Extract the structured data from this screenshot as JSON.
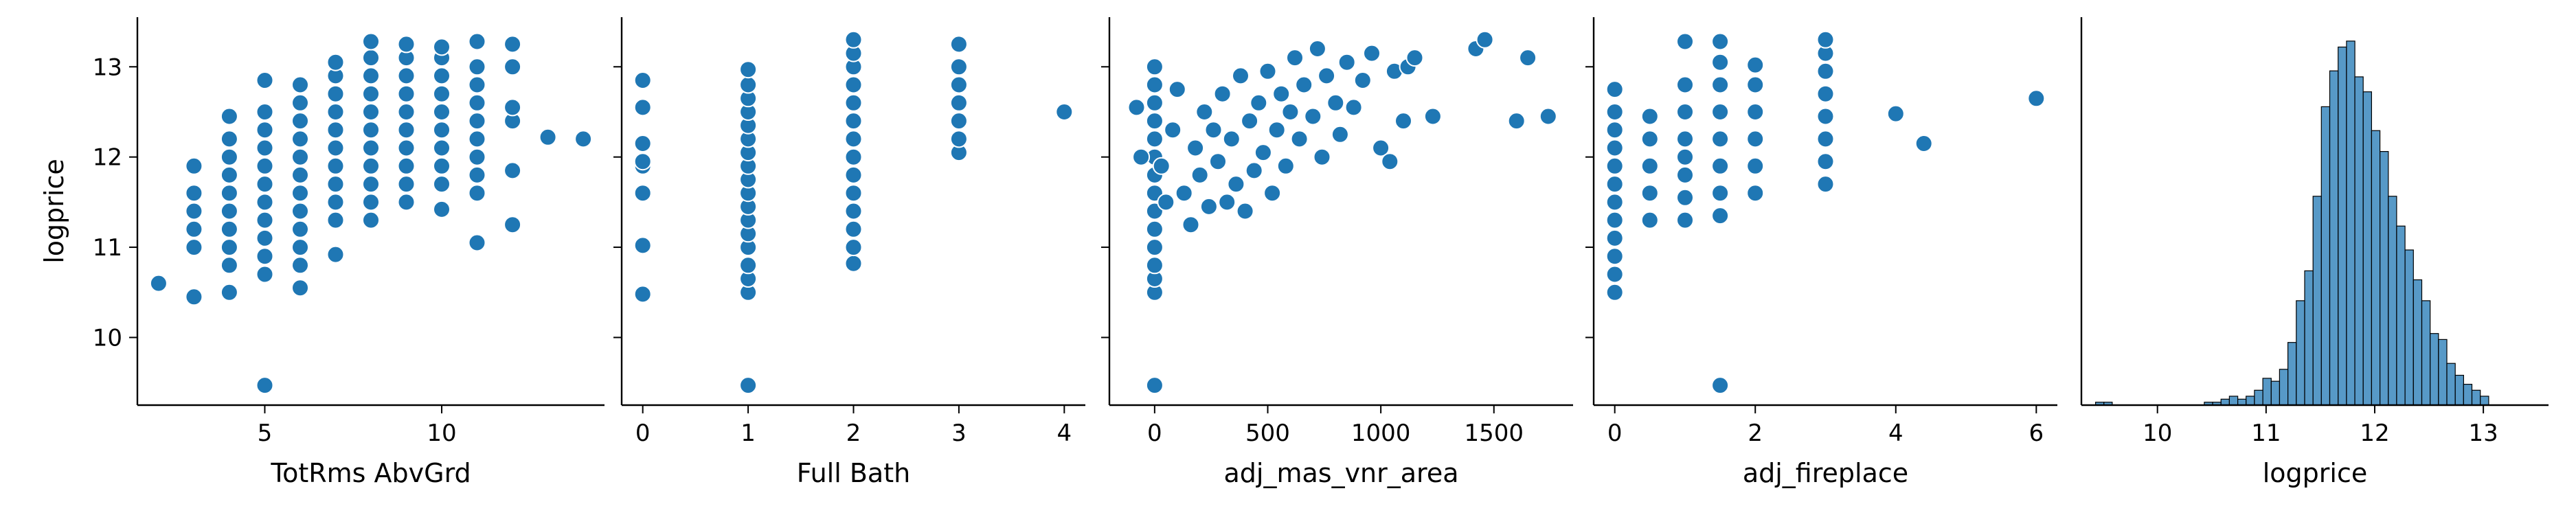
{
  "chart_data": [
    {
      "type": "scatter",
      "xlabel": "TotRms AbvGrd",
      "ylabel": "logprice",
      "xlim": [
        1.4,
        14.6
      ],
      "ylim": [
        9.25,
        13.55
      ],
      "xticks": [
        5,
        10
      ],
      "yticks": [
        10,
        11,
        12,
        13
      ],
      "color": "#1f77b4",
      "points": [
        [
          2,
          10.6
        ],
        [
          3,
          10.45
        ],
        [
          3,
          11.0
        ],
        [
          3,
          11.2
        ],
        [
          3,
          11.4
        ],
        [
          3,
          11.6
        ],
        [
          3,
          11.9
        ],
        [
          4,
          10.5
        ],
        [
          4,
          10.8
        ],
        [
          4,
          11.0
        ],
        [
          4,
          11.2
        ],
        [
          4,
          11.4
        ],
        [
          4,
          11.6
        ],
        [
          4,
          11.8
        ],
        [
          4,
          12.0
        ],
        [
          4,
          12.2
        ],
        [
          4,
          12.45
        ],
        [
          5,
          9.47
        ],
        [
          5,
          10.7
        ],
        [
          5,
          10.9
        ],
        [
          5,
          11.1
        ],
        [
          5,
          11.3
        ],
        [
          5,
          11.5
        ],
        [
          5,
          11.7
        ],
        [
          5,
          11.9
        ],
        [
          5,
          12.1
        ],
        [
          5,
          12.3
        ],
        [
          5,
          12.5
        ],
        [
          5,
          12.85
        ],
        [
          6,
          10.55
        ],
        [
          6,
          10.8
        ],
        [
          6,
          11.0
        ],
        [
          6,
          11.2
        ],
        [
          6,
          11.4
        ],
        [
          6,
          11.6
        ],
        [
          6,
          11.8
        ],
        [
          6,
          12.0
        ],
        [
          6,
          12.2
        ],
        [
          6,
          12.4
        ],
        [
          6,
          12.6
        ],
        [
          6,
          12.8
        ],
        [
          7,
          10.92
        ],
        [
          7,
          11.3
        ],
        [
          7,
          11.5
        ],
        [
          7,
          11.7
        ],
        [
          7,
          11.9
        ],
        [
          7,
          12.1
        ],
        [
          7,
          12.3
        ],
        [
          7,
          12.5
        ],
        [
          7,
          12.7
        ],
        [
          7,
          12.9
        ],
        [
          7,
          13.05
        ],
        [
          8,
          11.3
        ],
        [
          8,
          11.5
        ],
        [
          8,
          11.7
        ],
        [
          8,
          11.9
        ],
        [
          8,
          12.1
        ],
        [
          8,
          12.3
        ],
        [
          8,
          12.5
        ],
        [
          8,
          12.7
        ],
        [
          8,
          12.9
        ],
        [
          8,
          13.1
        ],
        [
          8,
          13.28
        ],
        [
          9,
          11.5
        ],
        [
          9,
          11.7
        ],
        [
          9,
          11.9
        ],
        [
          9,
          12.1
        ],
        [
          9,
          12.3
        ],
        [
          9,
          12.5
        ],
        [
          9,
          12.7
        ],
        [
          9,
          12.9
        ],
        [
          9,
          13.1
        ],
        [
          9,
          13.25
        ],
        [
          10,
          11.42
        ],
        [
          10,
          11.7
        ],
        [
          10,
          11.9
        ],
        [
          10,
          12.1
        ],
        [
          10,
          12.3
        ],
        [
          10,
          12.5
        ],
        [
          10,
          12.7
        ],
        [
          10,
          12.9
        ],
        [
          10,
          13.1
        ],
        [
          10,
          13.22
        ],
        [
          11,
          11.05
        ],
        [
          11,
          11.6
        ],
        [
          11,
          11.8
        ],
        [
          11,
          12.0
        ],
        [
          11,
          12.2
        ],
        [
          11,
          12.4
        ],
        [
          11,
          12.6
        ],
        [
          11,
          12.8
        ],
        [
          11,
          13.0
        ],
        [
          11,
          13.28
        ],
        [
          12,
          11.25
        ],
        [
          12,
          11.85
        ],
        [
          12,
          12.4
        ],
        [
          12,
          12.55
        ],
        [
          12,
          13.0
        ],
        [
          12,
          13.25
        ],
        [
          13,
          12.22
        ],
        [
          14,
          12.2
        ]
      ]
    },
    {
      "type": "scatter",
      "xlabel": "Full Bath",
      "ylabel": "",
      "xlim": [
        -0.2,
        4.2
      ],
      "ylim": [
        9.25,
        13.55
      ],
      "xticks": [
        0,
        1,
        2,
        3,
        4
      ],
      "yticks": [
        10,
        11,
        12,
        13
      ],
      "color": "#1f77b4",
      "points": [
        [
          0,
          10.48
        ],
        [
          0,
          11.02
        ],
        [
          0,
          11.6
        ],
        [
          0,
          11.9
        ],
        [
          0,
          11.95
        ],
        [
          0,
          12.15
        ],
        [
          0,
          12.55
        ],
        [
          0,
          12.85
        ],
        [
          1,
          9.47
        ],
        [
          1,
          10.5
        ],
        [
          1,
          10.65
        ],
        [
          1,
          10.8
        ],
        [
          1,
          11.0
        ],
        [
          1,
          11.15
        ],
        [
          1,
          11.3
        ],
        [
          1,
          11.45
        ],
        [
          1,
          11.6
        ],
        [
          1,
          11.75
        ],
        [
          1,
          11.9
        ],
        [
          1,
          12.05
        ],
        [
          1,
          12.2
        ],
        [
          1,
          12.35
        ],
        [
          1,
          12.5
        ],
        [
          1,
          12.65
        ],
        [
          1,
          12.8
        ],
        [
          1,
          12.97
        ],
        [
          2,
          10.82
        ],
        [
          2,
          11.0
        ],
        [
          2,
          11.2
        ],
        [
          2,
          11.4
        ],
        [
          2,
          11.6
        ],
        [
          2,
          11.8
        ],
        [
          2,
          12.0
        ],
        [
          2,
          12.2
        ],
        [
          2,
          12.4
        ],
        [
          2,
          12.6
        ],
        [
          2,
          12.8
        ],
        [
          2,
          13.0
        ],
        [
          2,
          13.15
        ],
        [
          2,
          13.3
        ],
        [
          3,
          12.05
        ],
        [
          3,
          12.2
        ],
        [
          3,
          12.4
        ],
        [
          3,
          12.6
        ],
        [
          3,
          12.8
        ],
        [
          3,
          13.0
        ],
        [
          3,
          13.25
        ],
        [
          4,
          12.5
        ]
      ]
    },
    {
      "type": "scatter",
      "xlabel": "adj_mas_vnr_area",
      "ylabel": "",
      "xlim": [
        -200,
        1850
      ],
      "ylim": [
        9.25,
        13.55
      ],
      "xticks": [
        0,
        500,
        1000,
        1500
      ],
      "yticks": [
        10,
        11,
        12,
        13
      ],
      "color": "#1f77b4",
      "points": [
        [
          0,
          9.47
        ],
        [
          0,
          10.5
        ],
        [
          0,
          10.65
        ],
        [
          0,
          10.8
        ],
        [
          0,
          11.0
        ],
        [
          0,
          11.2
        ],
        [
          0,
          11.4
        ],
        [
          0,
          11.6
        ],
        [
          0,
          11.8
        ],
        [
          0,
          12.0
        ],
        [
          0,
          12.2
        ],
        [
          0,
          12.4
        ],
        [
          0,
          12.6
        ],
        [
          0,
          12.8
        ],
        [
          0,
          13.0
        ],
        [
          -80,
          12.55
        ],
        [
          -60,
          12.0
        ],
        [
          30,
          11.9
        ],
        [
          50,
          11.5
        ],
        [
          80,
          12.3
        ],
        [
          100,
          12.75
        ],
        [
          130,
          11.6
        ],
        [
          160,
          11.25
        ],
        [
          180,
          12.1
        ],
        [
          200,
          11.8
        ],
        [
          220,
          12.5
        ],
        [
          240,
          11.45
        ],
        [
          260,
          12.3
        ],
        [
          280,
          11.95
        ],
        [
          300,
          12.7
        ],
        [
          320,
          11.5
        ],
        [
          340,
          12.2
        ],
        [
          360,
          11.7
        ],
        [
          380,
          12.9
        ],
        [
          400,
          11.4
        ],
        [
          420,
          12.4
        ],
        [
          440,
          11.85
        ],
        [
          460,
          12.6
        ],
        [
          480,
          12.05
        ],
        [
          500,
          12.95
        ],
        [
          520,
          11.6
        ],
        [
          540,
          12.3
        ],
        [
          560,
          12.7
        ],
        [
          580,
          11.9
        ],
        [
          600,
          12.5
        ],
        [
          620,
          13.1
        ],
        [
          640,
          12.2
        ],
        [
          660,
          12.8
        ],
        [
          700,
          12.45
        ],
        [
          720,
          13.2
        ],
        [
          740,
          12.0
        ],
        [
          760,
          12.9
        ],
        [
          800,
          12.6
        ],
        [
          820,
          12.25
        ],
        [
          850,
          13.05
        ],
        [
          880,
          12.55
        ],
        [
          920,
          12.85
        ],
        [
          960,
          13.15
        ],
        [
          1000,
          12.1
        ],
        [
          1040,
          11.95
        ],
        [
          1060,
          12.95
        ],
        [
          1100,
          12.4
        ],
        [
          1120,
          13.0
        ],
        [
          1150,
          13.1
        ],
        [
          1230,
          12.45
        ],
        [
          1420,
          13.2
        ],
        [
          1460,
          13.3
        ],
        [
          1600,
          12.4
        ],
        [
          1650,
          13.1
        ],
        [
          1740,
          12.45
        ]
      ]
    },
    {
      "type": "scatter",
      "xlabel": "adj_fireplace",
      "ylabel": "",
      "xlim": [
        -0.3,
        6.3
      ],
      "ylim": [
        9.25,
        13.55
      ],
      "xticks": [
        0,
        2,
        4,
        6
      ],
      "yticks": [
        10,
        11,
        12,
        13
      ],
      "color": "#1f77b4",
      "points": [
        [
          0,
          10.5
        ],
        [
          0,
          10.7
        ],
        [
          0,
          10.9
        ],
        [
          0,
          11.1
        ],
        [
          0,
          11.3
        ],
        [
          0,
          11.5
        ],
        [
          0,
          11.7
        ],
        [
          0,
          11.9
        ],
        [
          0,
          12.1
        ],
        [
          0,
          12.3
        ],
        [
          0,
          12.5
        ],
        [
          0,
          12.75
        ],
        [
          0.5,
          11.3
        ],
        [
          0.5,
          11.6
        ],
        [
          0.5,
          11.9
        ],
        [
          0.5,
          12.2
        ],
        [
          0.5,
          12.45
        ],
        [
          1,
          11.3
        ],
        [
          1,
          11.55
        ],
        [
          1,
          11.8
        ],
        [
          1,
          12.0
        ],
        [
          1,
          12.2
        ],
        [
          1,
          12.5
        ],
        [
          1,
          12.8
        ],
        [
          1,
          13.28
        ],
        [
          1.5,
          9.47
        ],
        [
          1.5,
          11.35
        ],
        [
          1.5,
          11.6
        ],
        [
          1.5,
          11.9
        ],
        [
          1.5,
          12.2
        ],
        [
          1.5,
          12.5
        ],
        [
          1.5,
          12.8
        ],
        [
          1.5,
          13.05
        ],
        [
          1.5,
          13.28
        ],
        [
          2,
          11.6
        ],
        [
          2,
          11.9
        ],
        [
          2,
          12.2
        ],
        [
          2,
          12.5
        ],
        [
          2,
          12.8
        ],
        [
          2,
          13.02
        ],
        [
          3,
          11.7
        ],
        [
          3,
          11.95
        ],
        [
          3,
          12.2
        ],
        [
          3,
          12.45
        ],
        [
          3,
          12.7
        ],
        [
          3,
          12.95
        ],
        [
          3,
          13.15
        ],
        [
          3,
          13.3
        ],
        [
          4,
          12.48
        ],
        [
          4.4,
          12.15
        ],
        [
          6,
          12.65
        ]
      ]
    },
    {
      "type": "bar",
      "subtype": "histogram",
      "xlabel": "logprice",
      "ylabel": "",
      "xlim": [
        9.3,
        13.6
      ],
      "xticks": [
        10,
        11,
        12,
        13
      ],
      "ylim": [
        0,
        130
      ],
      "bins_start": 9.43,
      "bin_width": 0.077,
      "counts": [
        1,
        1,
        0,
        0,
        0,
        0,
        0,
        0,
        0,
        0,
        0,
        0,
        0,
        1,
        1,
        2,
        3,
        2,
        3,
        5,
        9,
        8,
        12,
        21,
        35,
        45,
        70,
        100,
        112,
        120,
        122,
        110,
        105,
        92,
        85,
        70,
        60,
        52,
        42,
        35,
        24,
        22,
        14,
        10,
        7,
        5,
        3
      ],
      "color": "#1f77b4"
    }
  ]
}
